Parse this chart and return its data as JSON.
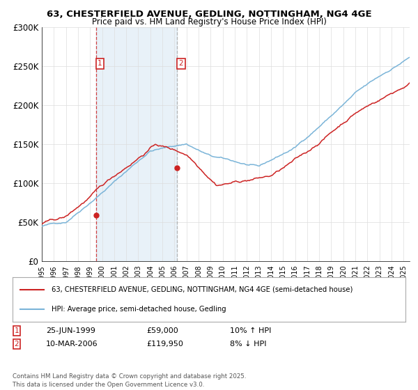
{
  "title": "63, CHESTERFIELD AVENUE, GEDLING, NOTTINGHAM, NG4 4GE",
  "subtitle": "Price paid vs. HM Land Registry's House Price Index (HPI)",
  "sale1_date": 1999.48,
  "sale1_price": 59000,
  "sale1_label": "1",
  "sale2_date": 2006.19,
  "sale2_price": 119950,
  "sale2_label": "2",
  "hpi_color": "#7ab4d8",
  "price_color": "#cc2222",
  "sale1_vline_color": "#cc2222",
  "sale1_vline_style": "--",
  "sale2_vline_color": "#aaaaaa",
  "sale2_vline_style": "--",
  "shaded_color": "#cce0f0",
  "shaded_alpha": 0.45,
  "legend1": "63, CHESTERFIELD AVENUE, GEDLING, NOTTINGHAM, NG4 4GE (semi-detached house)",
  "legend2": "HPI: Average price, semi-detached house, Gedling",
  "annotation1_date": "25-JUN-1999",
  "annotation1_price": "£59,000",
  "annotation1_note": "10% ↑ HPI",
  "annotation2_date": "10-MAR-2006",
  "annotation2_price": "£119,950",
  "annotation2_note": "8% ↓ HPI",
  "footer": "Contains HM Land Registry data © Crown copyright and database right 2025.\nThis data is licensed under the Open Government Licence v3.0.",
  "ylim_min": 0,
  "ylim_max": 300000,
  "yticks": [
    0,
    50000,
    100000,
    150000,
    200000,
    250000,
    300000
  ],
  "ytick_labels": [
    "£0",
    "£50K",
    "£100K",
    "£150K",
    "£200K",
    "£250K",
    "£300K"
  ],
  "xmin": 1995.0,
  "xmax": 2025.5,
  "seed": 42
}
